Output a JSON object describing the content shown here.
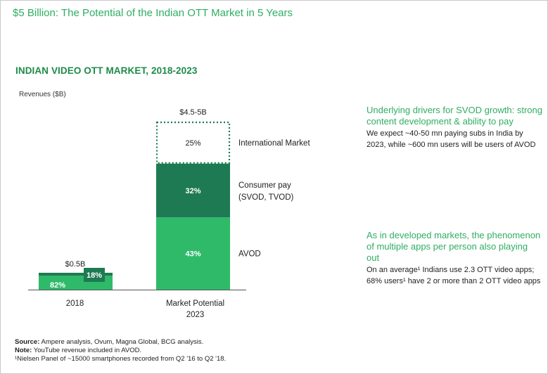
{
  "header": {
    "title": "$5 Billion: The Potential of the Indian OTT Market in 5 Years"
  },
  "chart_data": {
    "type": "bar",
    "stacked": true,
    "title": "INDIAN VIDEO OTT MARKET, 2018-2023",
    "ylabel": "Revenues ($B)",
    "categories": [
      "2018",
      "Market Potential 2023"
    ],
    "category_lines": [
      [
        "2018"
      ],
      [
        "Market Potential",
        "2023"
      ]
    ],
    "totals": [
      "$0.5B",
      "$4.5-5B"
    ],
    "series": [
      {
        "name": "AVOD",
        "values_pct": [
          82,
          43
        ],
        "labels": [
          "82%",
          "43%"
        ],
        "color": "#2fba6a"
      },
      {
        "name": "Consumer pay (SVOD, TVOD)",
        "name_lines": [
          "Consumer pay",
          "(SVOD, TVOD)"
        ],
        "values_pct": [
          18,
          32
        ],
        "labels": [
          "18%",
          "32%"
        ],
        "color": "#1e7a52"
      },
      {
        "name": "International Market",
        "values_pct": [
          0,
          25
        ],
        "labels": [
          "",
          "25%"
        ],
        "color": "#1e7a52",
        "style": "dotted-outline"
      }
    ],
    "legend_placement": "right of bars"
  },
  "drivers": [
    {
      "heading": "Underlying drivers for SVOD growth: strong content development & ability to pay",
      "body": "We expect ~40-50 mn paying subs in India by 2023, while ~600 mn users will be users of AVOD"
    },
    {
      "heading": "As in developed markets, the phenomenon of multiple apps per person also playing out",
      "body": "On an average¹ Indians use 2.3 OTT video apps; 68% users¹ have 2 or more than 2 OTT video apps"
    }
  ],
  "footnotes": {
    "source_label": "Source:",
    "source_text": " Ampere analysis, Ovum, Magna Global, BCG analysis.",
    "note_label": "Note:",
    "note_text": " YouTube revenue included in AVOD.",
    "nielsen": "¹Nielsen Panel of ~15000 smartphones recorded from Q2 '16 to Q2 '18."
  },
  "colors": {
    "accent_green": "#2fae62",
    "title_green": "#1e8a4a",
    "light_bar": "#2fba6a",
    "dark_bar": "#1e7a52"
  }
}
